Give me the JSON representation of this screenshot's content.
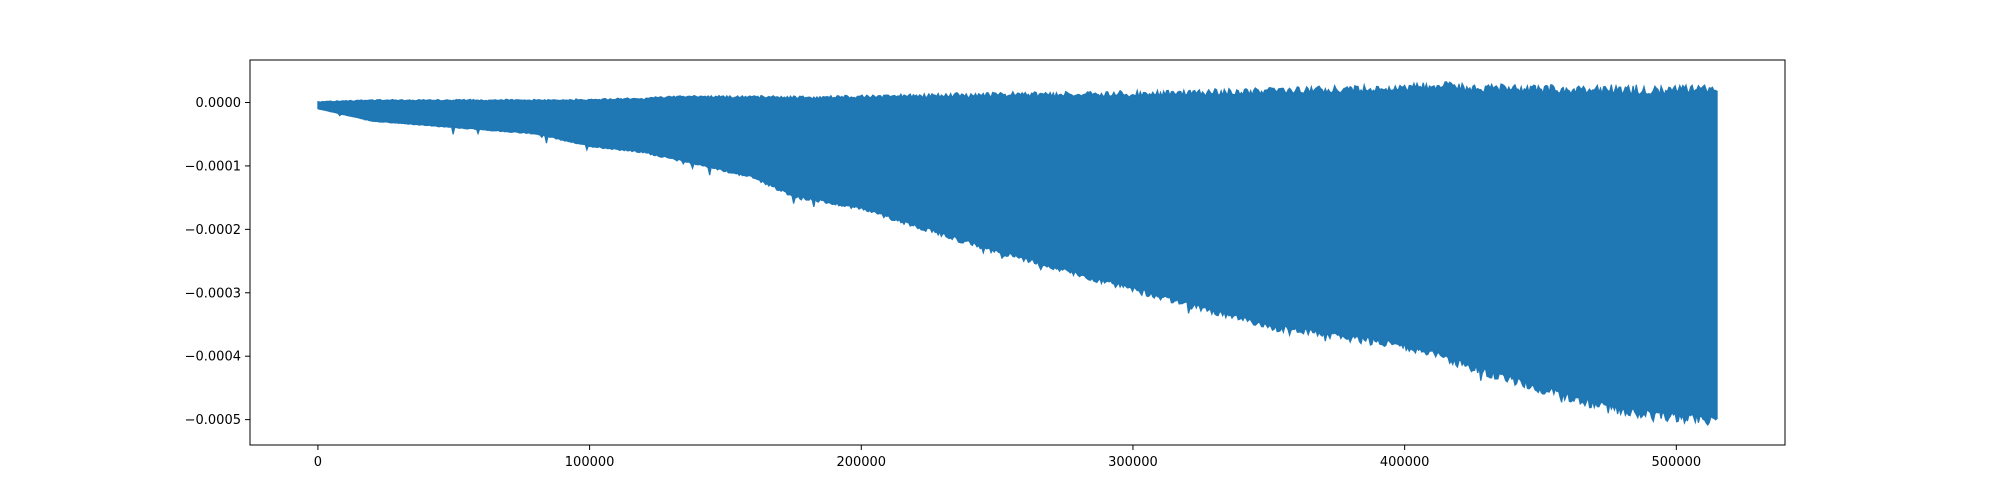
{
  "chart_data": {
    "type": "line",
    "title": "",
    "xlabel": "",
    "ylabel": "",
    "grid": false,
    "legend": "none",
    "xlim": [
      -25000,
      540000
    ],
    "ylim": [
      -0.00054,
      6.7e-05
    ],
    "xticks": [
      0,
      100000,
      200000,
      300000,
      400000,
      500000
    ],
    "xtick_labels": [
      "0",
      "100000",
      "200000",
      "300000",
      "400000",
      "500000"
    ],
    "yticks": [
      0.0,
      -0.0001,
      -0.0002,
      -0.0003,
      -0.0004,
      -0.0005
    ],
    "ytick_labels": [
      "0.0000",
      "−0.0001",
      "−0.0002",
      "−0.0003",
      "−0.0004",
      "−0.0005"
    ],
    "series": [
      {
        "color": "#1f77b4",
        "x_range": [
          0,
          515000
        ],
        "upper_envelope": {
          "x": [
            0,
            20000,
            50000,
            100000,
            120000,
            130000,
            180000,
            250000,
            300000,
            330000,
            350000,
            380000,
            400000,
            415000,
            420000,
            450000,
            500000,
            515000
          ],
          "y": [
            2e-06,
            5e-06,
            5e-06,
            6e-06,
            8e-06,
            1.2e-05,
            1.1e-05,
            1.7e-05,
            1.9e-05,
            2.2e-05,
            2.5e-05,
            2.8e-05,
            3e-05,
            3.4e-05,
            3.1e-05,
            2.9e-05,
            2.9e-05,
            2.9e-05
          ]
        },
        "lower_envelope": {
          "x": [
            0,
            10000,
            20000,
            50000,
            80000,
            100000,
            120000,
            140000,
            160000,
            175000,
            200000,
            250000,
            300000,
            350000,
            400000,
            450000,
            480000,
            500000,
            515000
          ],
          "y": [
            -1e-05,
            -2e-05,
            -3e-05,
            -4e-05,
            -5e-05,
            -7e-05,
            -8e-05,
            -0.0001,
            -0.00012,
            -0.00015,
            -0.00017,
            -0.00024,
            -0.0003,
            -0.00036,
            -0.00039,
            -0.00046,
            -0.000495,
            -0.000505,
            -0.00051
          ]
        }
      }
    ]
  }
}
